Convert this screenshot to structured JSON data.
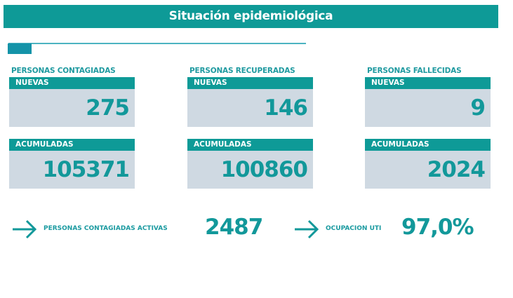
{
  "title": "Situación epidemiológica",
  "groups": [
    {
      "label": "PERSONAS CONTAGIADAS",
      "nuevas_label": "NUEVAS",
      "nuevas": "275",
      "acumuladas_label": "ACUMULADAS",
      "acumuladas": "105371"
    },
    {
      "label": "PERSONAS RECUPERADAS",
      "nuevas_label": "NUEVAS",
      "nuevas": "146",
      "acumuladas_label": "ACUMULADAS",
      "acumuladas": "100860"
    },
    {
      "label": "PERSONAS FALLECIDAS",
      "nuevas_label": "NUEVAS",
      "nuevas": "9",
      "acumuladas_label": "ACUMULADAS",
      "acumuladas": "2024"
    }
  ],
  "activas": {
    "label": "PERSONAS CONTAGIADAS ACTIVAS",
    "value": "2487"
  },
  "uti": {
    "label": "OCUPACION UTI",
    "value": "97,0%"
  },
  "colors": {
    "accent": "#0e9a97",
    "card_bg": "#cfd9e2"
  }
}
